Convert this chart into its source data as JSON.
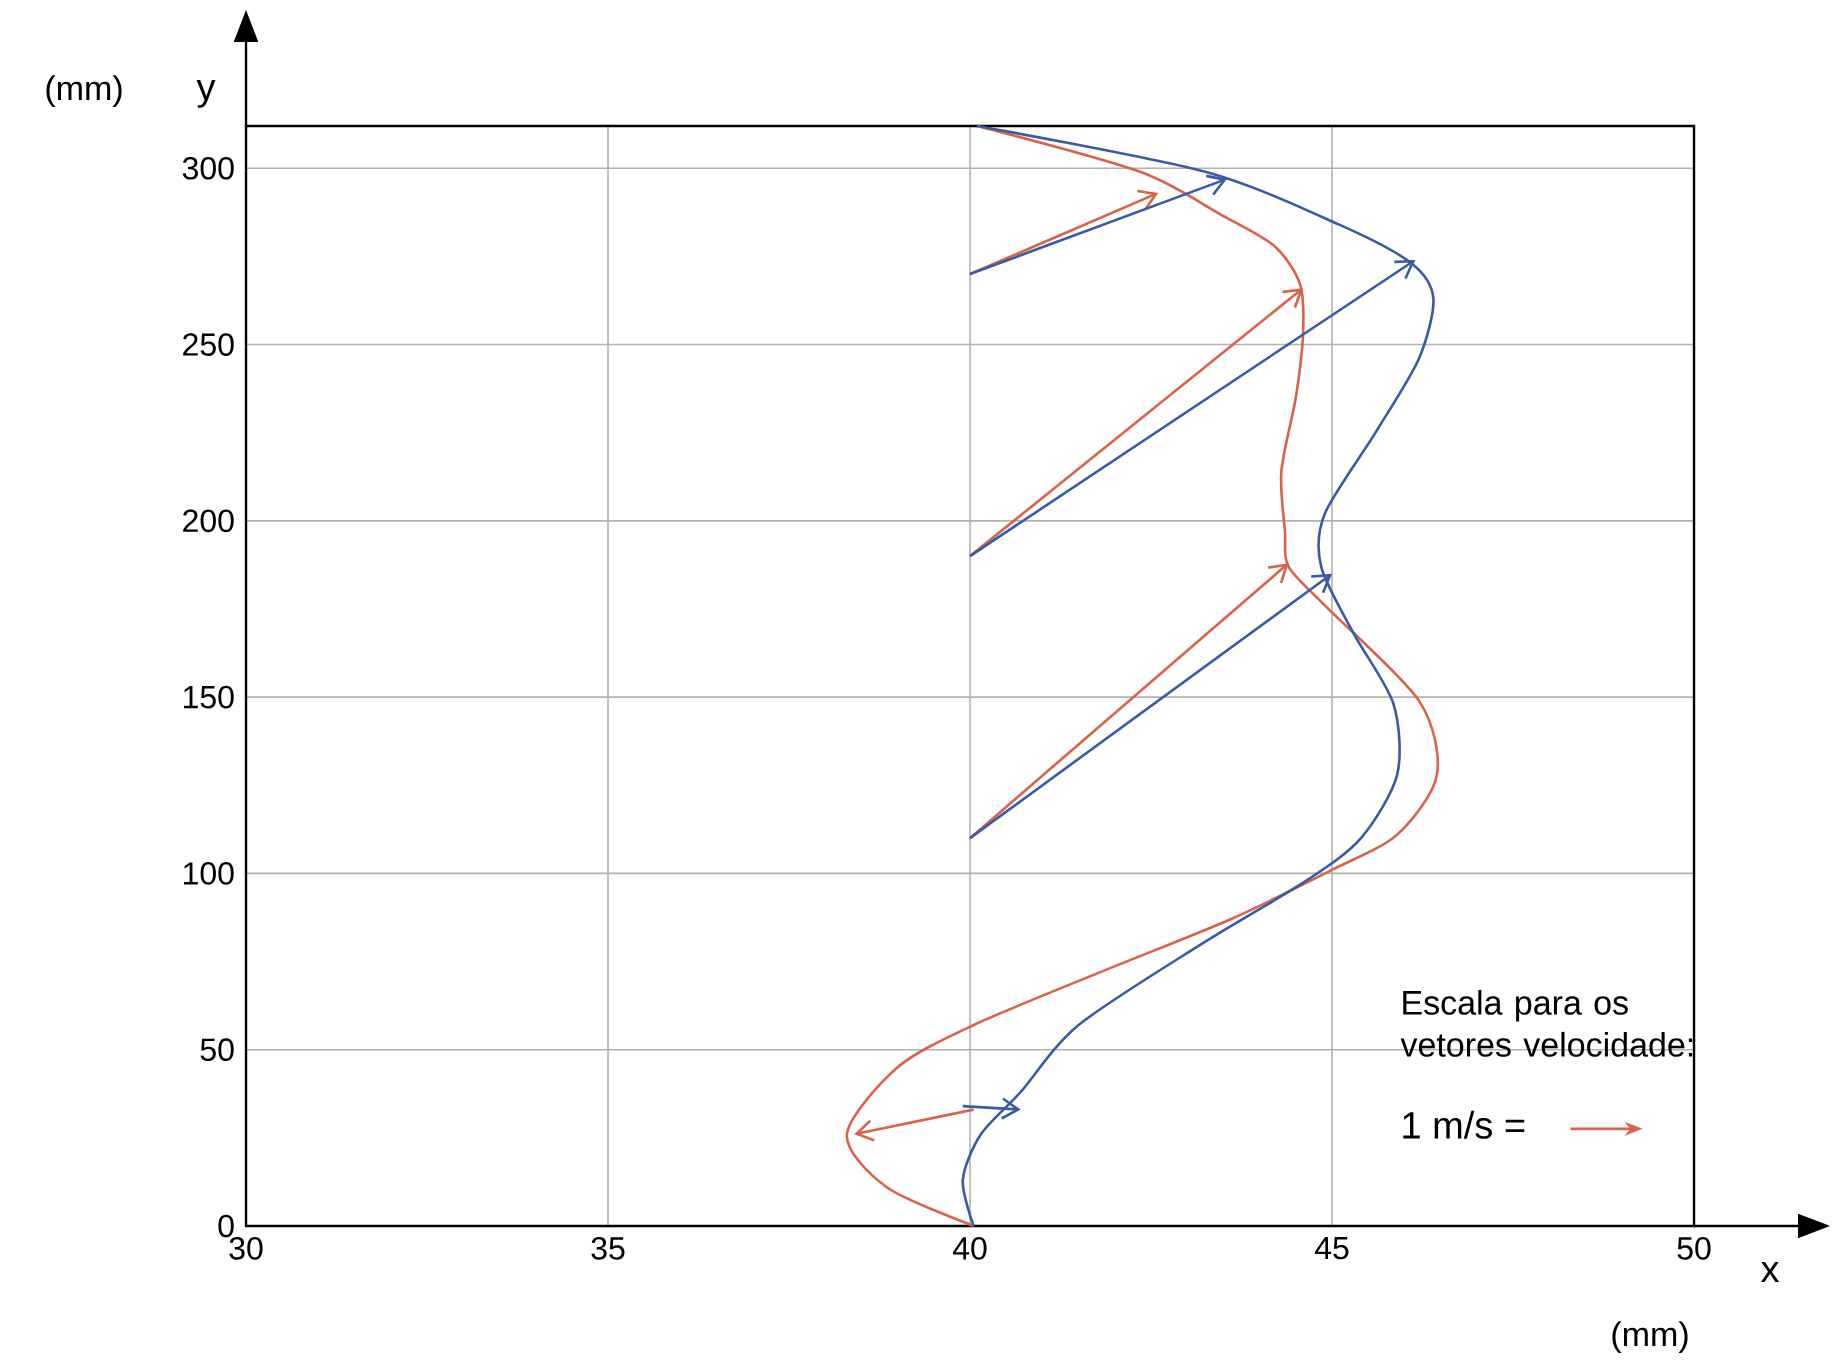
{
  "chart_data": {
    "type": "line",
    "xlabel": "x",
    "ylabel": "y",
    "xlim": [
      30,
      50
    ],
    "ylim": [
      0,
      312
    ],
    "xticks": [
      30,
      35,
      40,
      45,
      50
    ],
    "yticks": [
      0,
      50,
      100,
      150,
      200,
      250,
      300
    ],
    "grid": true,
    "marker": "none",
    "line_style": "solid",
    "series": [
      {
        "color": "#d9634a",
        "x": [
          40.1,
          42.35,
          43.45,
          44.2,
          44.56,
          44.6,
          44.5,
          44.3,
          44.35,
          44.4,
          44.9,
          46.2,
          46.45,
          45.9,
          45.0,
          43.6,
          41.8,
          40.05,
          39.0,
          38.3,
          38.85,
          40.05
        ],
        "values": [
          312,
          299,
          287,
          278,
          267,
          253,
          235,
          214,
          197,
          187,
          176,
          149,
          128,
          111,
          101,
          87,
          72,
          57,
          45,
          26,
          11,
          0
        ]
      },
      {
        "color": "#3a5aa8",
        "x": [
          40.1,
          43.25,
          45.1,
          46.1,
          46.4,
          46.2,
          45.6,
          44.9,
          44.85,
          45.3,
          45.85,
          45.9,
          45.4,
          44.65,
          43.2,
          41.5,
          40.7,
          40.15,
          39.9,
          40.05
        ],
        "values": [
          312,
          299,
          284,
          273,
          263,
          246,
          225,
          202,
          187,
          168,
          148,
          128,
          110,
          98,
          80,
          57,
          38,
          26,
          13,
          0
        ]
      }
    ],
    "annotations": [
      "Escala para os vetores velocidade:",
      "1 m/s =",
      "(mm)",
      "(mm)"
    ]
  }
}
